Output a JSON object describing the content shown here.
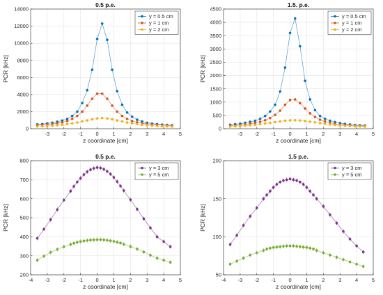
{
  "chart_data": [
    {
      "type": "scatter",
      "title": "0.5 p.e.",
      "xlabel": "z coordinate [cm]",
      "ylabel": "PCR [kHz]",
      "xlim": [
        -4,
        5
      ],
      "ylim": [
        0,
        14000
      ],
      "xticks": [
        "-3",
        "-2",
        "-1",
        "0",
        "1",
        "2",
        "3",
        "4",
        "5"
      ],
      "yticks": [
        "0",
        "2000",
        "4000",
        "6000",
        "8000",
        "10000",
        "12000",
        "14000"
      ],
      "grid": true,
      "legend_position": "top-right",
      "series": [
        {
          "name": "y = 0.5 cm",
          "color": "#0072BD",
          "x": [
            -3.6,
            -3.3,
            -3.0,
            -2.7,
            -2.4,
            -2.1,
            -1.8,
            -1.5,
            -1.2,
            -0.9,
            -0.6,
            -0.3,
            0,
            0.3,
            0.6,
            0.9,
            1.2,
            1.5,
            1.8,
            2.1,
            2.4,
            2.7,
            3.0,
            3.3,
            3.6,
            3.9,
            4.2,
            4.5
          ],
          "y": [
            500,
            550,
            620,
            700,
            820,
            950,
            1150,
            1500,
            2000,
            3000,
            4500,
            6900,
            10500,
            12300,
            10400,
            6900,
            4400,
            2800,
            1900,
            1400,
            1050,
            850,
            700,
            600,
            540,
            480,
            440,
            400
          ]
        },
        {
          "name": "y = 1 cm",
          "color": "#D95319",
          "x": [
            -3.6,
            -3.3,
            -3.0,
            -2.7,
            -2.4,
            -2.1,
            -1.8,
            -1.5,
            -1.2,
            -0.9,
            -0.6,
            -0.3,
            0,
            0.3,
            0.6,
            0.9,
            1.2,
            1.5,
            1.8,
            2.1,
            2.4,
            2.7,
            3.0,
            3.3,
            3.6,
            3.9,
            4.2,
            4.5
          ],
          "y": [
            400,
            450,
            500,
            560,
            650,
            750,
            900,
            1150,
            1500,
            2000,
            2700,
            3500,
            4100,
            4100,
            3500,
            2700,
            2000,
            1500,
            1150,
            900,
            750,
            650,
            560,
            500,
            450,
            410,
            380,
            350
          ]
        },
        {
          "name": "y = 2 cm",
          "color": "#EDB120",
          "x": [
            -3.6,
            -3.3,
            -3.0,
            -2.7,
            -2.4,
            -2.1,
            -1.8,
            -1.5,
            -1.2,
            -0.9,
            -0.6,
            -0.3,
            0,
            0.3,
            0.6,
            0.9,
            1.2,
            1.5,
            1.8,
            2.1,
            2.4,
            2.7,
            3.0,
            3.3,
            3.6,
            3.9,
            4.2,
            4.5
          ],
          "y": [
            260,
            290,
            320,
            360,
            410,
            470,
            540,
            630,
            730,
            850,
            970,
            1100,
            1200,
            1250,
            1200,
            1100,
            970,
            850,
            730,
            630,
            540,
            470,
            410,
            360,
            320,
            290,
            270,
            250
          ]
        }
      ]
    },
    {
      "type": "scatter",
      "title": "1.5. p.e.",
      "xlabel": "z coordinate [cm]",
      "ylabel": "PCR [kHz]",
      "xlim": [
        -4,
        5
      ],
      "ylim": [
        0,
        4500
      ],
      "xticks": [
        "-3",
        "-2",
        "-1",
        "0",
        "1",
        "2",
        "3",
        "4",
        "5"
      ],
      "yticks": [
        "0",
        "500",
        "1000",
        "1500",
        "2000",
        "2500",
        "3000",
        "3500",
        "4000",
        "4500"
      ],
      "grid": true,
      "legend_position": "top-right",
      "series": [
        {
          "name": "y = 0.5 cm",
          "color": "#0072BD",
          "x": [
            -3.6,
            -3.3,
            -3.0,
            -2.7,
            -2.4,
            -2.1,
            -1.8,
            -1.5,
            -1.2,
            -0.9,
            -0.6,
            -0.3,
            0,
            0.3,
            0.6,
            0.9,
            1.2,
            1.5,
            1.8,
            2.1,
            2.4,
            2.7,
            3.0,
            3.3,
            3.6,
            3.9,
            4.2,
            4.5
          ],
          "y": [
            150,
            170,
            190,
            220,
            260,
            300,
            370,
            480,
            650,
            900,
            1400,
            2300,
            3600,
            4150,
            3100,
            1800,
            1100,
            700,
            480,
            370,
            300,
            250,
            210,
            180,
            160,
            140,
            130,
            120
          ]
        },
        {
          "name": "y = 1 cm",
          "color": "#D95319",
          "x": [
            -3.6,
            -3.3,
            -3.0,
            -2.7,
            -2.4,
            -2.1,
            -1.8,
            -1.5,
            -1.2,
            -0.9,
            -0.6,
            -0.3,
            0,
            0.3,
            0.6,
            0.9,
            1.2,
            1.5,
            1.8,
            2.1,
            2.4,
            2.7,
            3.0,
            3.3,
            3.6,
            3.9,
            4.2,
            4.5
          ],
          "y": [
            110,
            120,
            140,
            160,
            190,
            220,
            260,
            320,
            400,
            520,
            680,
            900,
            1080,
            1100,
            960,
            760,
            580,
            440,
            340,
            270,
            220,
            185,
            160,
            140,
            125,
            115,
            105,
            100
          ]
        },
        {
          "name": "y = 2 cm",
          "color": "#EDB120",
          "x": [
            -3.6,
            -3.3,
            -3.0,
            -2.7,
            -2.4,
            -2.1,
            -1.8,
            -1.5,
            -1.2,
            -0.9,
            -0.6,
            -0.3,
            0,
            0.3,
            0.6,
            0.9,
            1.2,
            1.5,
            1.8,
            2.1,
            2.4,
            2.7,
            3.0,
            3.3,
            3.6,
            3.9,
            4.2,
            4.5
          ],
          "y": [
            80,
            90,
            100,
            115,
            130,
            150,
            170,
            195,
            220,
            250,
            275,
            300,
            315,
            320,
            310,
            290,
            265,
            240,
            210,
            185,
            160,
            140,
            125,
            110,
            100,
            90,
            85,
            80
          ]
        }
      ]
    },
    {
      "type": "scatter",
      "title": "0.5 p.e.",
      "xlabel": "z coordinate [cm]",
      "ylabel": "PCR [kHz]",
      "xlim": [
        -4,
        5
      ],
      "ylim": [
        200,
        800
      ],
      "xticks": [
        "-4",
        "-3",
        "-2",
        "-1",
        "0",
        "1",
        "2",
        "3",
        "4",
        "5"
      ],
      "yticks": [
        "200",
        "300",
        "400",
        "500",
        "600",
        "700",
        "800"
      ],
      "grid": true,
      "legend_position": "top-right",
      "series": [
        {
          "name": "y = 3 cm",
          "color": "#7E2F8E",
          "x": [
            -3.6,
            -3.2,
            -2.8,
            -2.4,
            -2.0,
            -1.6,
            -1.4,
            -1.2,
            -1.0,
            -0.8,
            -0.6,
            -0.4,
            -0.2,
            0,
            0.2,
            0.4,
            0.6,
            0.8,
            1.0,
            1.2,
            1.4,
            1.6,
            2.0,
            2.4,
            2.8,
            3.2,
            3.6,
            4.0,
            4.4
          ],
          "y": [
            392,
            440,
            490,
            543,
            593,
            640,
            665,
            688,
            708,
            727,
            742,
            753,
            760,
            764,
            762,
            755,
            744,
            730,
            712,
            690,
            667,
            643,
            595,
            545,
            495,
            447,
            400,
            375,
            348
          ]
        },
        {
          "name": "y = 5 cm",
          "color": "#77AC30",
          "x": [
            -3.6,
            -3.2,
            -2.8,
            -2.4,
            -2.0,
            -1.6,
            -1.4,
            -1.2,
            -1.0,
            -0.8,
            -0.6,
            -0.4,
            -0.2,
            0,
            0.2,
            0.4,
            0.6,
            0.8,
            1.0,
            1.2,
            1.4,
            1.6,
            2.0,
            2.4,
            2.8,
            3.2,
            3.6,
            4.0,
            4.4
          ],
          "y": [
            277,
            298,
            318,
            334,
            348,
            360,
            366,
            371,
            375,
            378,
            381,
            383,
            384,
            385,
            385,
            384,
            382,
            379,
            376,
            372,
            367,
            361,
            349,
            336,
            320,
            303,
            288,
            277,
            266
          ]
        }
      ]
    },
    {
      "type": "scatter",
      "title": "1.5 p.e.",
      "xlabel": "z coordinate [cm]",
      "ylabel": "PCR [kHz]",
      "xlim": [
        -4,
        5
      ],
      "ylim": [
        50,
        200
      ],
      "xticks": [
        "-4",
        "-3",
        "-2",
        "-1",
        "0",
        "1",
        "2",
        "3",
        "4",
        "5"
      ],
      "yticks": [
        "50",
        "100",
        "150",
        "200"
      ],
      "grid": true,
      "legend_position": "top-right",
      "series": [
        {
          "name": "y = 3 cm",
          "color": "#7E2F8E",
          "x": [
            -3.6,
            -3.2,
            -2.8,
            -2.4,
            -2.0,
            -1.6,
            -1.4,
            -1.2,
            -1.0,
            -0.8,
            -0.6,
            -0.4,
            -0.2,
            0,
            0.2,
            0.4,
            0.6,
            0.8,
            1.0,
            1.2,
            1.4,
            1.6,
            2.0,
            2.4,
            2.8,
            3.2,
            3.6,
            4.0,
            4.4
          ],
          "y": [
            90,
            102,
            115,
            127,
            138,
            150,
            155,
            160,
            165,
            169,
            172,
            174,
            175,
            176,
            175,
            174,
            172,
            169,
            165,
            160,
            155,
            150,
            140,
            129,
            118,
            107,
            97,
            88,
            80
          ]
        },
        {
          "name": "y = 5 cm",
          "color": "#77AC30",
          "x": [
            -3.6,
            -3.2,
            -2.8,
            -2.4,
            -2.0,
            -1.6,
            -1.4,
            -1.2,
            -1.0,
            -0.8,
            -0.6,
            -0.4,
            -0.2,
            0,
            0.2,
            0.4,
            0.6,
            0.8,
            1.0,
            1.2,
            1.4,
            1.6,
            2.0,
            2.4,
            2.8,
            3.2,
            3.6,
            4.0,
            4.4
          ],
          "y": [
            64,
            68,
            72,
            76,
            79,
            82,
            84,
            85,
            86,
            86.5,
            87,
            87.5,
            88,
            88,
            88,
            87.5,
            87,
            86.5,
            86,
            85,
            84,
            82,
            79,
            76,
            73,
            70,
            67,
            64,
            61
          ]
        }
      ]
    }
  ]
}
